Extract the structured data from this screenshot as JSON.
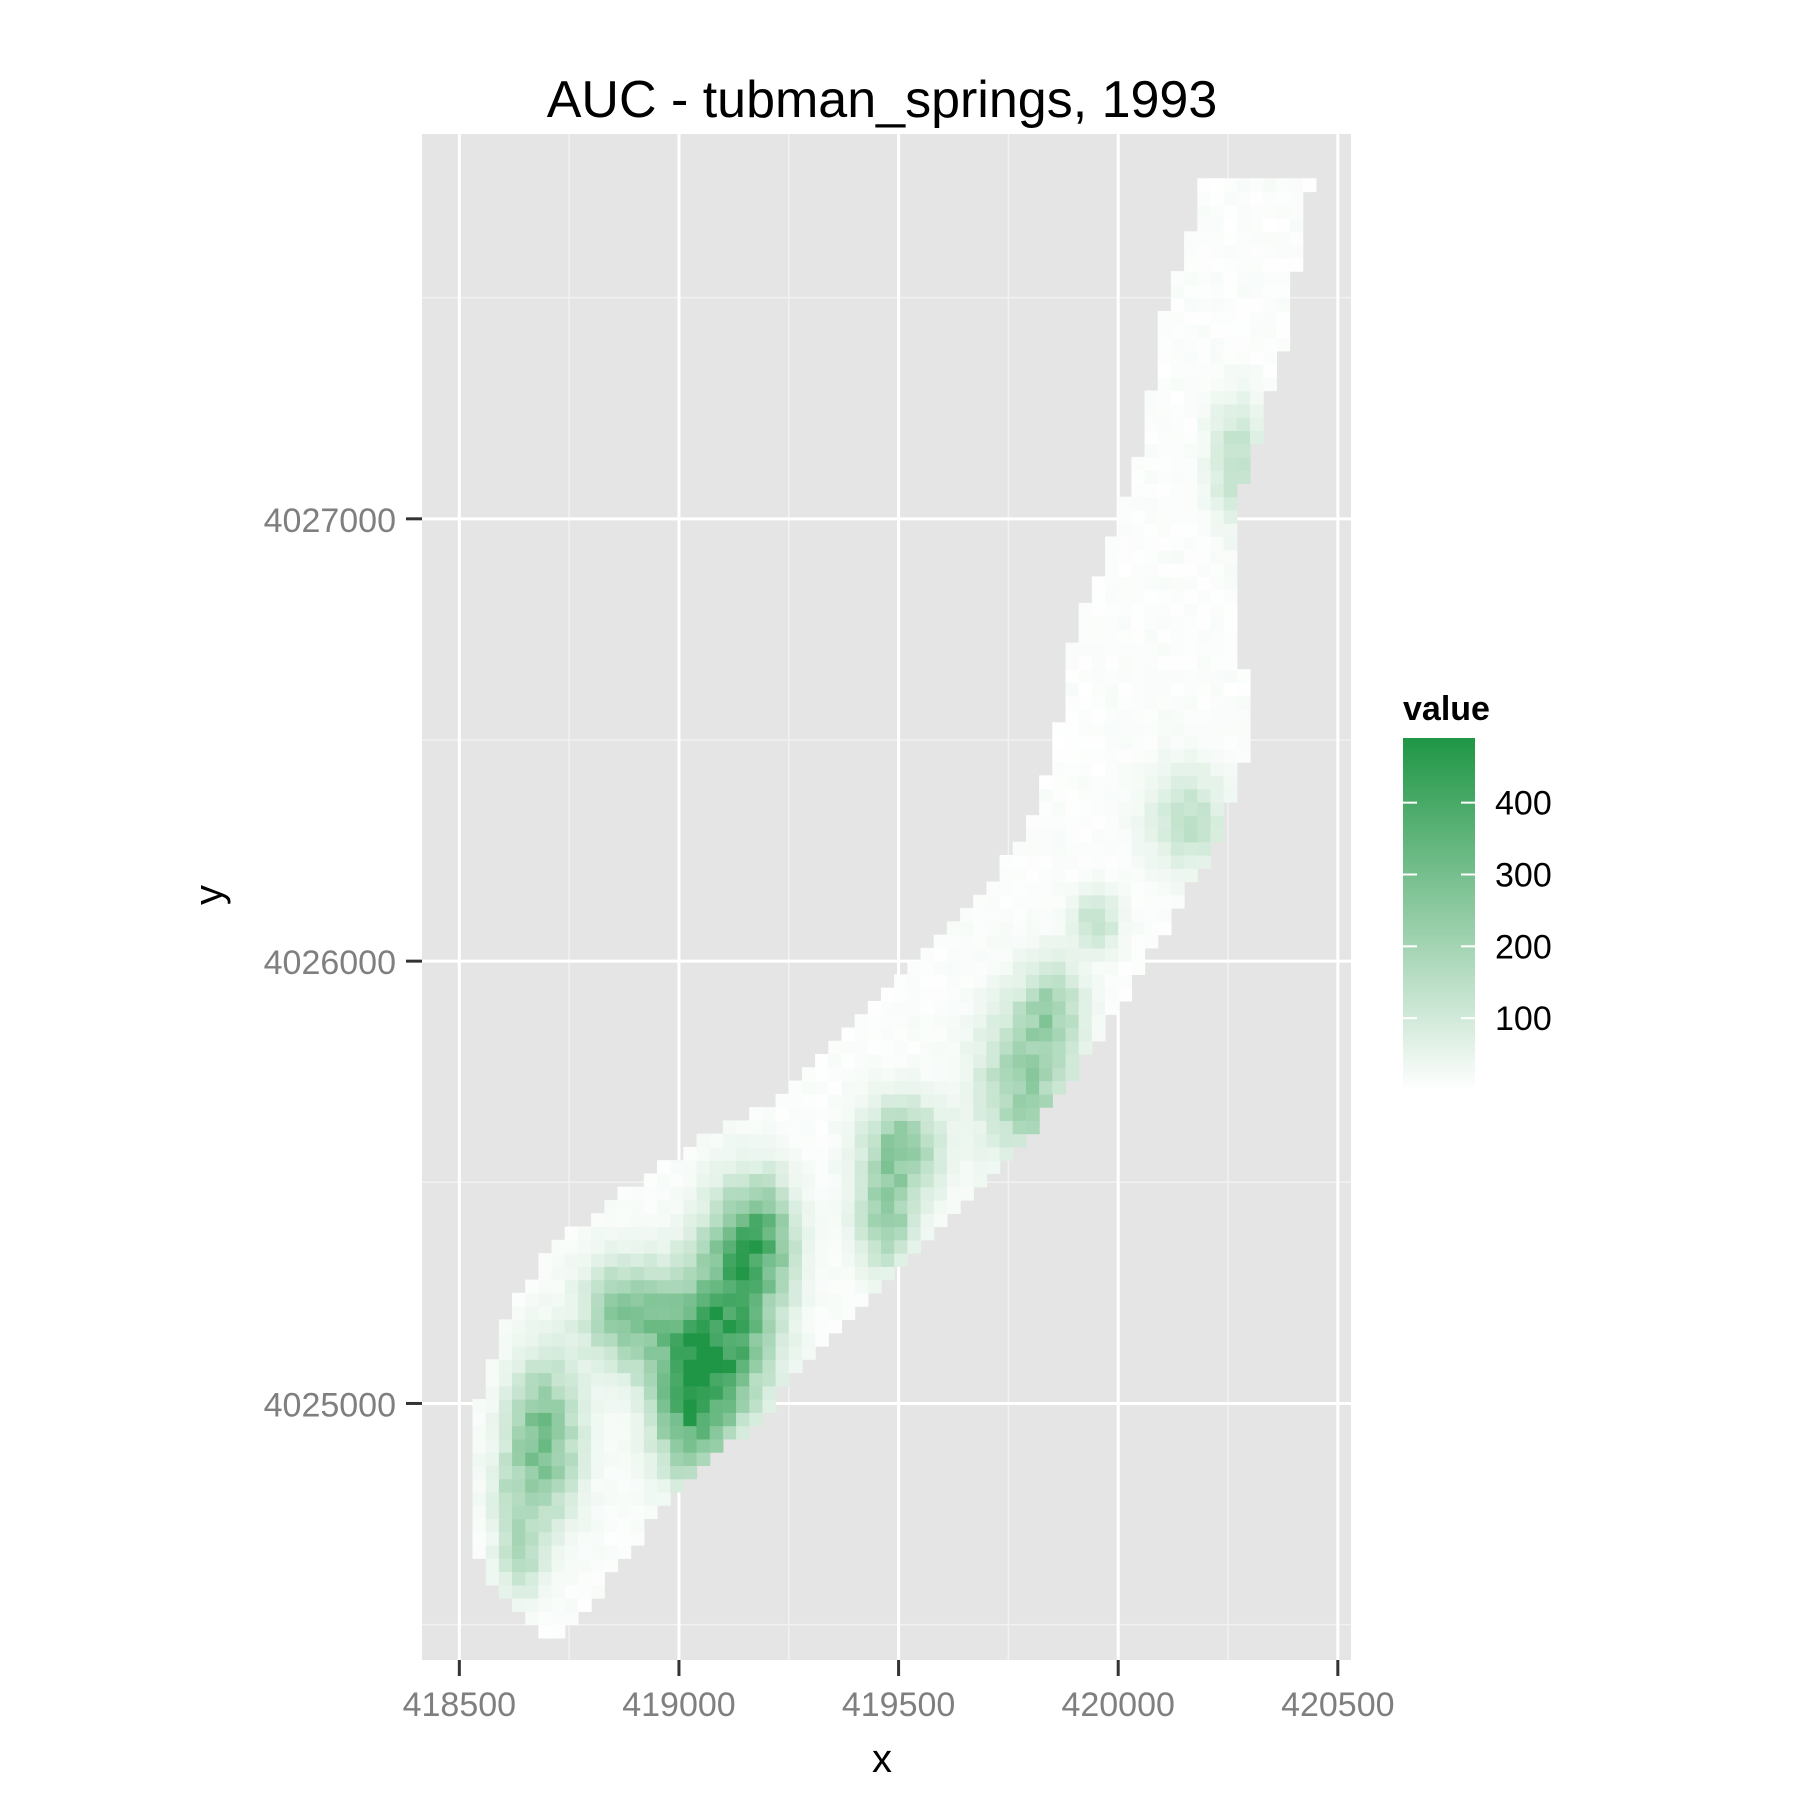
{
  "chart_data": {
    "type": "heatmap",
    "title": "AUC - tubman_springs, 1993",
    "xlabel": "x",
    "ylabel": "y",
    "xlim": [
      418415,
      420530
    ],
    "ylim": [
      4024420,
      4027870
    ],
    "x_ticks": [
      418500,
      419000,
      419500,
      420000,
      420500
    ],
    "y_ticks": [
      4025000,
      4026000,
      4027000
    ],
    "x_tick_labels": [
      "418500",
      "419000",
      "419500",
      "420000",
      "420500"
    ],
    "y_tick_labels": [
      "4025000",
      "4026000",
      "4027000"
    ],
    "grid": true,
    "cell_size": 30,
    "value_range": [
      0,
      490
    ],
    "colors": {
      "low": "#ffffff",
      "high": "#1f9645",
      "panel": "#e5e5e5",
      "grid_major": "#ffffff",
      "grid_minor": "#f2f2f2",
      "tick_text": "#7f7f7f"
    },
    "region_boundary": [
      {
        "y": 4024460,
        "x_left": 418700,
        "x_right": 418720
      },
      {
        "y": 4024550,
        "x_left": 418600,
        "x_right": 418810
      },
      {
        "y": 4024650,
        "x_left": 418540,
        "x_right": 418870
      },
      {
        "y": 4024760,
        "x_left": 418520,
        "x_right": 418960
      },
      {
        "y": 4024850,
        "x_left": 418520,
        "x_right": 419030
      },
      {
        "y": 4024950,
        "x_left": 418530,
        "x_right": 419170
      },
      {
        "y": 4025050,
        "x_left": 418560,
        "x_right": 419250
      },
      {
        "y": 4025200,
        "x_left": 418610,
        "x_right": 419400
      },
      {
        "y": 4025350,
        "x_left": 418700,
        "x_right": 419530
      },
      {
        "y": 4025500,
        "x_left": 418900,
        "x_right": 419700
      },
      {
        "y": 4025600,
        "x_left": 419050,
        "x_right": 419790
      },
      {
        "y": 4025700,
        "x_left": 419250,
        "x_right": 419870
      },
      {
        "y": 4025850,
        "x_left": 419400,
        "x_right": 419970
      },
      {
        "y": 4026000,
        "x_left": 419550,
        "x_right": 420060
      },
      {
        "y": 4026150,
        "x_left": 419680,
        "x_right": 420150
      },
      {
        "y": 4026300,
        "x_left": 419800,
        "x_right": 420240
      },
      {
        "y": 4026500,
        "x_left": 419860,
        "x_right": 420300
      },
      {
        "y": 4026700,
        "x_left": 419880,
        "x_right": 420280
      },
      {
        "y": 4026850,
        "x_left": 419950,
        "x_right": 420260
      },
      {
        "y": 4027000,
        "x_left": 420000,
        "x_right": 420260
      },
      {
        "y": 4027150,
        "x_left": 420050,
        "x_right": 420310
      },
      {
        "y": 4027300,
        "x_left": 420080,
        "x_right": 420350
      },
      {
        "y": 4027450,
        "x_left": 420100,
        "x_right": 420390
      },
      {
        "y": 4027600,
        "x_left": 420150,
        "x_right": 420410
      },
      {
        "y": 4027700,
        "x_left": 420180,
        "x_right": 420430
      },
      {
        "y": 4027780,
        "x_left": 420170,
        "x_right": 420440
      }
    ],
    "hotspots": [
      {
        "x": 419030,
        "y": 4025030,
        "value": 470,
        "sx": 60,
        "sy": 120
      },
      {
        "x": 419120,
        "y": 4025200,
        "value": 360,
        "sx": 70,
        "sy": 140
      },
      {
        "x": 419180,
        "y": 4025380,
        "value": 300,
        "sx": 55,
        "sy": 90
      },
      {
        "x": 418890,
        "y": 4025200,
        "value": 280,
        "sx": 70,
        "sy": 80
      },
      {
        "x": 418690,
        "y": 4024920,
        "value": 300,
        "sx": 55,
        "sy": 120
      },
      {
        "x": 418640,
        "y": 4024660,
        "value": 170,
        "sx": 35,
        "sy": 60
      },
      {
        "x": 419510,
        "y": 4025580,
        "value": 240,
        "sx": 60,
        "sy": 70
      },
      {
        "x": 419470,
        "y": 4025420,
        "value": 220,
        "sx": 45,
        "sy": 80
      },
      {
        "x": 419790,
        "y": 4025720,
        "value": 220,
        "sx": 70,
        "sy": 120
      },
      {
        "x": 419850,
        "y": 4025900,
        "value": 180,
        "sx": 45,
        "sy": 70
      },
      {
        "x": 419950,
        "y": 4026090,
        "value": 150,
        "sx": 35,
        "sy": 45
      },
      {
        "x": 420160,
        "y": 4026320,
        "value": 130,
        "sx": 60,
        "sy": 80
      },
      {
        "x": 420270,
        "y": 4027130,
        "value": 150,
        "sx": 40,
        "sy": 90
      },
      {
        "x": 418620,
        "y": 4024800,
        "value": 80,
        "sx": 40,
        "sy": 60
      }
    ],
    "legend": {
      "title": "value",
      "placement": "right",
      "breaks": [
        100,
        200,
        300,
        400
      ],
      "break_labels": [
        "100",
        "200",
        "300",
        "400"
      ]
    }
  }
}
